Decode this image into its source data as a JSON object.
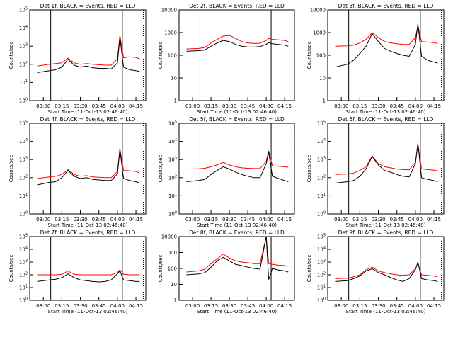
{
  "figure": {
    "start_time_label": "Start Time (11-Oct-13 02:46:40)",
    "ylabel": "Counts/sec",
    "colors": {
      "events": "#000000",
      "lld": "#ff0000"
    }
  },
  "chart_data": [
    {
      "type": "line",
      "title": "Det 1f, BLACK = Events, RED = LLD",
      "ylabel": "Counts/sec",
      "xlabel": "Start Time (11-Oct-13 02:46:40)",
      "x_ticks": [
        "03:00",
        "03:15",
        "03:30",
        "03:45",
        "04:00",
        "04:15"
      ],
      "y_ticks": [
        "10^0",
        "10^1",
        "10^2",
        "10^3",
        "10^4",
        "10^5"
      ],
      "yscale": "log",
      "ylim": [
        1,
        100000
      ],
      "series": [
        {
          "color": "#000000",
          "x": [
            "02:55",
            "03:05",
            "03:10",
            "03:15",
            "03:20",
            "03:25",
            "03:30",
            "03:35",
            "03:40",
            "03:45",
            "03:50",
            "03:55",
            "04:00",
            "04:02",
            "04:05",
            "04:10",
            "04:15",
            "04:18"
          ],
          "y": [
            35,
            45,
            50,
            70,
            190,
            90,
            70,
            80,
            65,
            60,
            60,
            55,
            120,
            3000,
            70,
            50,
            45,
            40
          ]
        },
        {
          "color": "#ff0000",
          "x": [
            "02:55",
            "03:05",
            "03:10",
            "03:15",
            "03:20",
            "03:25",
            "03:30",
            "03:35",
            "03:40",
            "03:45",
            "03:50",
            "03:55",
            "04:00",
            "04:02",
            "04:05",
            "04:10",
            "04:15",
            "04:18"
          ],
          "y": [
            80,
            100,
            110,
            120,
            220,
            120,
            100,
            110,
            100,
            95,
            90,
            90,
            200,
            4000,
            230,
            260,
            240,
            200
          ]
        }
      ]
    },
    {
      "type": "line",
      "title": "Det 2f, BLACK = Events, RED = LLD",
      "ylabel": "Counts/sec",
      "xlabel": "Start Time (11-Oct-13 02:46:40)",
      "x_ticks": [
        "03:00",
        "03:15",
        "03:30",
        "03:45",
        "04:00",
        "04:15"
      ],
      "y_ticks": [
        "1",
        "10",
        "100",
        "1000",
        "10000"
      ],
      "yscale": "log",
      "ylim": [
        1,
        10000
      ],
      "series": [
        {
          "color": "#000000",
          "x": [
            "02:55",
            "03:05",
            "03:10",
            "03:15",
            "03:20",
            "03:25",
            "03:30",
            "03:35",
            "03:40",
            "03:45",
            "03:50",
            "03:55",
            "04:00",
            "04:02",
            "04:05",
            "04:10",
            "04:15",
            "04:18"
          ],
          "y": [
            150,
            160,
            170,
            250,
            350,
            450,
            400,
            300,
            250,
            230,
            230,
            240,
            300,
            360,
            320,
            300,
            280,
            250
          ]
        },
        {
          "color": "#ff0000",
          "x": [
            "02:55",
            "03:05",
            "03:10",
            "03:15",
            "03:20",
            "03:25",
            "03:30",
            "03:35",
            "03:40",
            "03:45",
            "03:50",
            "03:55",
            "04:00",
            "04:02",
            "04:05",
            "04:10",
            "04:15",
            "04:18"
          ],
          "y": [
            190,
            200,
            220,
            350,
            500,
            700,
            750,
            550,
            400,
            350,
            330,
            340,
            450,
            550,
            500,
            480,
            450,
            400
          ]
        }
      ]
    },
    {
      "type": "line",
      "title": "Det 3f, BLACK = Events, RED = LLD",
      "ylabel": "Counts/sec",
      "xlabel": "Start Time (11-Oct-13 02:46:40)",
      "x_ticks": [
        "03:00",
        "03:15",
        "03:30",
        "03:45",
        "04:00",
        "04:15"
      ],
      "y_ticks": [
        "1",
        "10",
        "100",
        "1000",
        "10000"
      ],
      "yscale": "log",
      "ylim": [
        1,
        10000
      ],
      "series": [
        {
          "color": "#000000",
          "x": [
            "02:55",
            "03:05",
            "03:10",
            "03:15",
            "03:20",
            "03:25",
            "03:30",
            "03:35",
            "03:40",
            "03:45",
            "03:50",
            "03:55",
            "04:00",
            "04:02",
            "04:05",
            "04:10",
            "04:15",
            "04:18"
          ],
          "y": [
            30,
            40,
            60,
            120,
            250,
            900,
            400,
            200,
            150,
            120,
            100,
            90,
            300,
            2500,
            90,
            60,
            50,
            45
          ]
        },
        {
          "color": "#ff0000",
          "x": [
            "02:55",
            "03:05",
            "03:10",
            "03:15",
            "03:20",
            "03:25",
            "03:30",
            "03:35",
            "03:40",
            "03:45",
            "03:50",
            "03:55",
            "04:00",
            "04:02",
            "04:05",
            "04:10",
            "04:15",
            "04:18"
          ],
          "y": [
            250,
            260,
            280,
            350,
            500,
            1000,
            600,
            400,
            350,
            320,
            300,
            300,
            600,
            2000,
            400,
            380,
            360,
            330
          ]
        }
      ]
    },
    {
      "type": "line",
      "title": "Det 4f, BLACK = Events, RED = LLD",
      "ylabel": "Counts/sec",
      "xlabel": "Start Time (11-Oct-13 02:46:40)",
      "x_ticks": [
        "03:00",
        "03:15",
        "03:30",
        "03:45",
        "04:00",
        "04:15"
      ],
      "y_ticks": [
        "10^0",
        "10^1",
        "10^2",
        "10^3",
        "10^4",
        "10^5"
      ],
      "yscale": "log",
      "ylim": [
        1,
        100000
      ],
      "series": [
        {
          "color": "#000000",
          "x": [
            "02:55",
            "03:05",
            "03:10",
            "03:15",
            "03:20",
            "03:25",
            "03:30",
            "03:35",
            "03:40",
            "03:45",
            "03:50",
            "03:55",
            "04:00",
            "04:02",
            "04:05",
            "04:10",
            "04:15",
            "04:18"
          ],
          "y": [
            40,
            55,
            60,
            100,
            250,
            120,
            90,
            100,
            80,
            75,
            70,
            70,
            160,
            3500,
            90,
            70,
            60,
            50
          ]
        },
        {
          "color": "#ff0000",
          "x": [
            "02:55",
            "03:05",
            "03:10",
            "03:15",
            "03:20",
            "03:25",
            "03:30",
            "03:35",
            "03:40",
            "03:45",
            "03:50",
            "03:55",
            "04:00",
            "04:02",
            "04:05",
            "04:10",
            "04:15",
            "04:18"
          ],
          "y": [
            90,
            110,
            120,
            150,
            280,
            150,
            120,
            130,
            110,
            105,
            100,
            100,
            220,
            4000,
            250,
            240,
            220,
            180
          ]
        }
      ]
    },
    {
      "type": "line",
      "title": "Det 5f, BLACK = Events, RED = LLD",
      "ylabel": "Counts/sec",
      "xlabel": "Start Time (11-Oct-13 02:46:40)",
      "x_ticks": [
        "03:00",
        "03:15",
        "03:30",
        "03:45",
        "04:00",
        "04:15"
      ],
      "y_ticks": [
        "10^0",
        "10^1",
        "10^2",
        "10^3",
        "10^4",
        "10^5"
      ],
      "yscale": "log",
      "ylim": [
        1,
        100000
      ],
      "series": [
        {
          "color": "#000000",
          "x": [
            "02:55",
            "03:05",
            "03:10",
            "03:15",
            "03:20",
            "03:25",
            "03:30",
            "03:35",
            "03:40",
            "03:45",
            "03:50",
            "03:55",
            "04:00",
            "04:02",
            "04:05",
            "04:10",
            "04:15",
            "04:18"
          ],
          "y": [
            60,
            70,
            80,
            150,
            250,
            400,
            300,
            200,
            150,
            120,
            100,
            100,
            600,
            2500,
            120,
            90,
            70,
            60
          ]
        },
        {
          "color": "#ff0000",
          "x": [
            "02:55",
            "03:05",
            "03:10",
            "03:15",
            "03:20",
            "03:25",
            "03:30",
            "03:35",
            "03:40",
            "03:45",
            "03:50",
            "03:55",
            "04:00",
            "04:02",
            "04:05",
            "04:10",
            "04:15",
            "04:18"
          ],
          "y": [
            300,
            310,
            330,
            400,
            500,
            700,
            500,
            400,
            350,
            330,
            320,
            320,
            800,
            3000,
            450,
            420,
            400,
            380
          ]
        }
      ]
    },
    {
      "type": "line",
      "title": "Det 6f, BLACK = Events, RED = LLD",
      "ylabel": "Counts/sec",
      "xlabel": "Start Time (11-Oct-13 02:46:40)",
      "x_ticks": [
        "03:00",
        "03:15",
        "03:30",
        "03:45",
        "04:00",
        "04:15"
      ],
      "y_ticks": [
        "10^0",
        "10^1",
        "10^2",
        "10^3",
        "10^4",
        "10^5"
      ],
      "yscale": "log",
      "ylim": [
        1,
        100000
      ],
      "series": [
        {
          "color": "#000000",
          "x": [
            "02:55",
            "03:05",
            "03:10",
            "03:15",
            "03:20",
            "03:25",
            "03:30",
            "03:35",
            "03:40",
            "03:45",
            "03:50",
            "03:55",
            "04:00",
            "04:02",
            "04:05",
            "04:10",
            "04:15",
            "04:18"
          ],
          "y": [
            50,
            60,
            70,
            120,
            300,
            1500,
            500,
            250,
            200,
            150,
            120,
            110,
            600,
            8000,
            100,
            80,
            70,
            60
          ]
        },
        {
          "color": "#ff0000",
          "x": [
            "02:55",
            "03:05",
            "03:10",
            "03:15",
            "03:20",
            "03:25",
            "03:30",
            "03:35",
            "03:40",
            "03:45",
            "03:50",
            "03:55",
            "04:00",
            "04:02",
            "04:05",
            "04:10",
            "04:15",
            "04:18"
          ],
          "y": [
            150,
            160,
            180,
            250,
            400,
            1600,
            600,
            400,
            350,
            300,
            280,
            270,
            700,
            7000,
            300,
            280,
            260,
            240
          ]
        }
      ]
    },
    {
      "type": "line",
      "title": "Det 7f, BLACK = Events, RED = LLD",
      "ylabel": "Counts/sec",
      "xlabel": "Start Time (11-Oct-13 02:46:40)",
      "x_ticks": [
        "03:00",
        "03:15",
        "03:30",
        "03:45",
        "04:00",
        "04:15"
      ],
      "y_ticks": [
        "10^0",
        "10^1",
        "10^2",
        "10^3",
        "10^4",
        "10^5"
      ],
      "yscale": "log",
      "ylim": [
        1,
        100000
      ],
      "series": [
        {
          "color": "#000000",
          "x": [
            "02:55",
            "03:05",
            "03:10",
            "03:15",
            "03:20",
            "03:25",
            "03:30",
            "03:35",
            "03:40",
            "03:45",
            "03:50",
            "03:55",
            "04:00",
            "04:02",
            "04:05",
            "04:10",
            "04:15",
            "04:18"
          ],
          "y": [
            30,
            40,
            45,
            60,
            120,
            60,
            40,
            35,
            30,
            28,
            30,
            40,
            120,
            200,
            40,
            35,
            30,
            30
          ]
        },
        {
          "color": "#ff0000",
          "x": [
            "02:55",
            "03:05",
            "03:10",
            "03:15",
            "03:20",
            "03:25",
            "03:30",
            "03:35",
            "03:40",
            "03:45",
            "03:50",
            "03:55",
            "04:00",
            "04:02",
            "04:05",
            "04:10",
            "04:15",
            "04:18"
          ],
          "y": [
            100,
            100,
            100,
            110,
            200,
            110,
            100,
            100,
            100,
            100,
            100,
            100,
            150,
            250,
            110,
            100,
            100,
            100
          ]
        }
      ]
    },
    {
      "type": "line",
      "title": "Det 8f, BLACK = Events, RED = LLD",
      "ylabel": "Counts/sec",
      "xlabel": "Start Time (11-Oct-13 02:46:40)",
      "x_ticks": [
        "03:00",
        "03:15",
        "03:30",
        "03:45",
        "04:00",
        "04:15"
      ],
      "y_ticks": [
        "1",
        "10",
        "100",
        "1000",
        "10000"
      ],
      "yscale": "log",
      "ylim": [
        1,
        10000
      ],
      "series": [
        {
          "color": "#000000",
          "x": [
            "02:55",
            "03:05",
            "03:10",
            "03:15",
            "03:20",
            "03:25",
            "03:30",
            "03:35",
            "03:40",
            "03:45",
            "03:50",
            "03:55",
            "04:00",
            "04:02",
            "04:05",
            "04:10",
            "04:15",
            "04:18"
          ],
          "y": [
            40,
            45,
            55,
            120,
            300,
            500,
            300,
            180,
            150,
            120,
            100,
            90,
            10000,
            20,
            100,
            80,
            70,
            60
          ]
        },
        {
          "color": "#ff0000",
          "x": [
            "02:55",
            "03:05",
            "03:10",
            "03:15",
            "03:20",
            "03:25",
            "03:30",
            "03:35",
            "03:40",
            "03:45",
            "03:50",
            "03:55",
            "04:00",
            "04:02",
            "04:05",
            "04:10",
            "04:15",
            "04:18"
          ],
          "y": [
            60,
            70,
            90,
            200,
            400,
            800,
            450,
            300,
            250,
            230,
            200,
            200,
            10000,
            200,
            180,
            160,
            150,
            140
          ]
        }
      ]
    },
    {
      "type": "line",
      "title": "Det 9f, BLACK = Events, RED = LLD",
      "ylabel": "Counts/sec",
      "xlabel": "Start Time (11-Oct-13 02:46:40)",
      "x_ticks": [
        "03:00",
        "03:15",
        "03:30",
        "03:45",
        "04:00",
        "04:15"
      ],
      "y_ticks": [
        "10^0",
        "10^1",
        "10^2",
        "10^3",
        "10^4",
        "10^5"
      ],
      "yscale": "log",
      "ylim": [
        1,
        100000
      ],
      "series": [
        {
          "color": "#000000",
          "x": [
            "02:55",
            "03:05",
            "03:10",
            "03:15",
            "03:20",
            "03:25",
            "03:30",
            "03:35",
            "03:40",
            "03:45",
            "03:50",
            "03:55",
            "04:00",
            "04:02",
            "04:05",
            "04:10",
            "04:15",
            "04:18"
          ],
          "y": [
            30,
            35,
            50,
            80,
            200,
            300,
            150,
            100,
            60,
            40,
            30,
            50,
            250,
            1000,
            50,
            40,
            35,
            30
          ]
        },
        {
          "color": "#ff0000",
          "x": [
            "02:55",
            "03:05",
            "03:10",
            "03:15",
            "03:20",
            "03:25",
            "03:30",
            "03:35",
            "03:40",
            "03:45",
            "03:50",
            "03:55",
            "04:00",
            "04:02",
            "04:05",
            "04:10",
            "04:15",
            "04:18"
          ],
          "y": [
            50,
            55,
            70,
            100,
            250,
            400,
            200,
            150,
            120,
            100,
            90,
            100,
            300,
            800,
            100,
            90,
            80,
            70
          ]
        }
      ]
    }
  ]
}
